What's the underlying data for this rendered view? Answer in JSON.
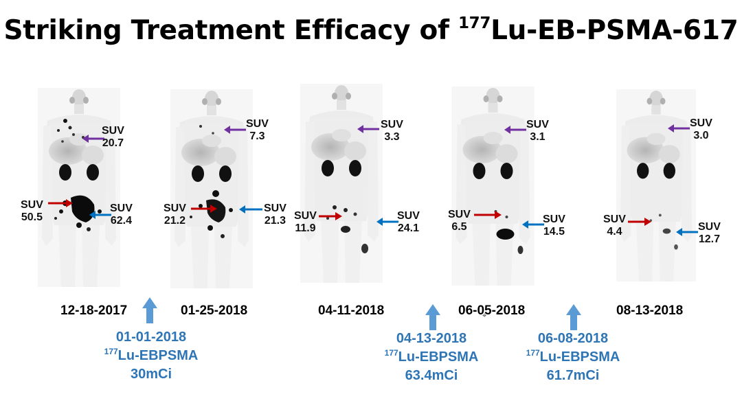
{
  "title": {
    "main": "Striking Treatment Efficacy of ",
    "sup": "177",
    "rest": "Lu-EB-PSMA-617"
  },
  "colors": {
    "purple": "#7030a0",
    "red": "#c00000",
    "blue": "#0070c0",
    "treatment": "#2e75b6",
    "uparrow": "#5b9bd5"
  },
  "scans": [
    {
      "date": "12-18-2017",
      "purple": {
        "suv": "SUV",
        "value": "20.7"
      },
      "red": {
        "suv": "SUV",
        "value": "50.5"
      },
      "blue": {
        "suv": "SUV",
        "value": "62.4"
      }
    },
    {
      "date": "01-25-2018",
      "purple": {
        "suv": "SUV",
        "value": "7.3"
      },
      "red": {
        "suv": "SUV",
        "value": "21.2"
      },
      "blue": {
        "suv": "SUV",
        "value": "21.3"
      }
    },
    {
      "date": "04-11-2018",
      "purple": {
        "suv": "SUV",
        "value": "3.3"
      },
      "red": {
        "suv": "SUV",
        "value": "11.9"
      },
      "blue": {
        "suv": "SUV",
        "value": "24.1"
      }
    },
    {
      "date": "06-05-2018",
      "purple": {
        "suv": "SUV",
        "value": "3.1"
      },
      "red": {
        "suv": "SUV",
        "value": "6.5"
      },
      "blue": {
        "suv": "SUV",
        "value": "14.5"
      }
    },
    {
      "date": "08-13-2018",
      "purple": {
        "suv": "SUV",
        "value": "3.0"
      },
      "red": {
        "suv": "SUV",
        "value": "4.4"
      },
      "blue": {
        "suv": "SUV",
        "value": "12.7"
      }
    }
  ],
  "treatments": [
    {
      "date": "01-01-2018",
      "sup": "177",
      "drug": "Lu-EBPSMA",
      "dose": "30mCi"
    },
    {
      "date": "04-13-2018",
      "sup": "177",
      "drug": "Lu-EBPSMA",
      "dose": "63.4mCi"
    },
    {
      "date": "06-08-2018",
      "sup": "177",
      "drug": "Lu-EBPSMA",
      "dose": "61.7mCi"
    }
  ]
}
